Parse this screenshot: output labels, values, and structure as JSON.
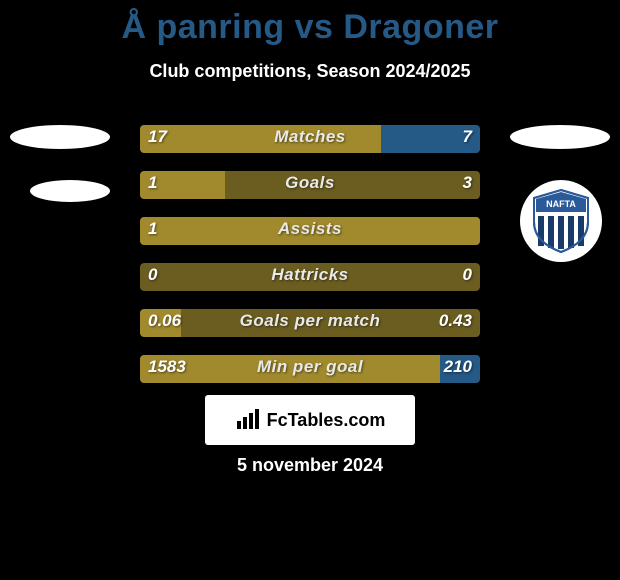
{
  "title": "Å panring vs Dragoner",
  "subtitle": "Club competitions, Season 2024/2025",
  "watermark": "FcTables.com",
  "date": "5 november 2024",
  "colors": {
    "left_fill": "#a08a2d",
    "right_fill": "#255986",
    "empty_fill": "#6b5d20",
    "bar_bg": "#6b5d20",
    "title_color": "#255986",
    "text_color": "#ffffff",
    "background": "#000000"
  },
  "logo_right2": {
    "top_color": "#2a5a9a",
    "stripe_color": "#1a3a6a",
    "label": "NAFTA"
  },
  "bars": [
    {
      "label": "Matches",
      "left_val": "17",
      "right_val": "7",
      "left_pct": 70.8,
      "right_pct": 29.2,
      "left_color": "#a08a2d",
      "right_color": "#255986",
      "bg_color": "#a08a2d"
    },
    {
      "label": "Goals",
      "left_val": "1",
      "right_val": "3",
      "left_pct": 25.0,
      "right_pct": 75.0,
      "left_color": "#a08a2d",
      "right_color": "#6b5d20",
      "bg_color": "#6b5d20"
    },
    {
      "label": "Assists",
      "left_val": "1",
      "right_val": "",
      "left_pct": 100,
      "right_pct": 0,
      "left_color": "#a08a2d",
      "right_color": "#6b5d20",
      "bg_color": "#a08a2d"
    },
    {
      "label": "Hattricks",
      "left_val": "0",
      "right_val": "0",
      "left_pct": 0,
      "right_pct": 0,
      "left_color": "#a08a2d",
      "right_color": "#6b5d20",
      "bg_color": "#6b5d20"
    },
    {
      "label": "Goals per match",
      "left_val": "0.06",
      "right_val": "0.43",
      "left_pct": 12.2,
      "right_pct": 87.8,
      "left_color": "#a08a2d",
      "right_color": "#6b5d20",
      "bg_color": "#6b5d20"
    },
    {
      "label": "Min per goal",
      "left_val": "1583",
      "right_val": "210",
      "left_pct": 88.3,
      "right_pct": 11.7,
      "left_color": "#a08a2d",
      "right_color": "#255986",
      "bg_color": "#a08a2d"
    }
  ]
}
